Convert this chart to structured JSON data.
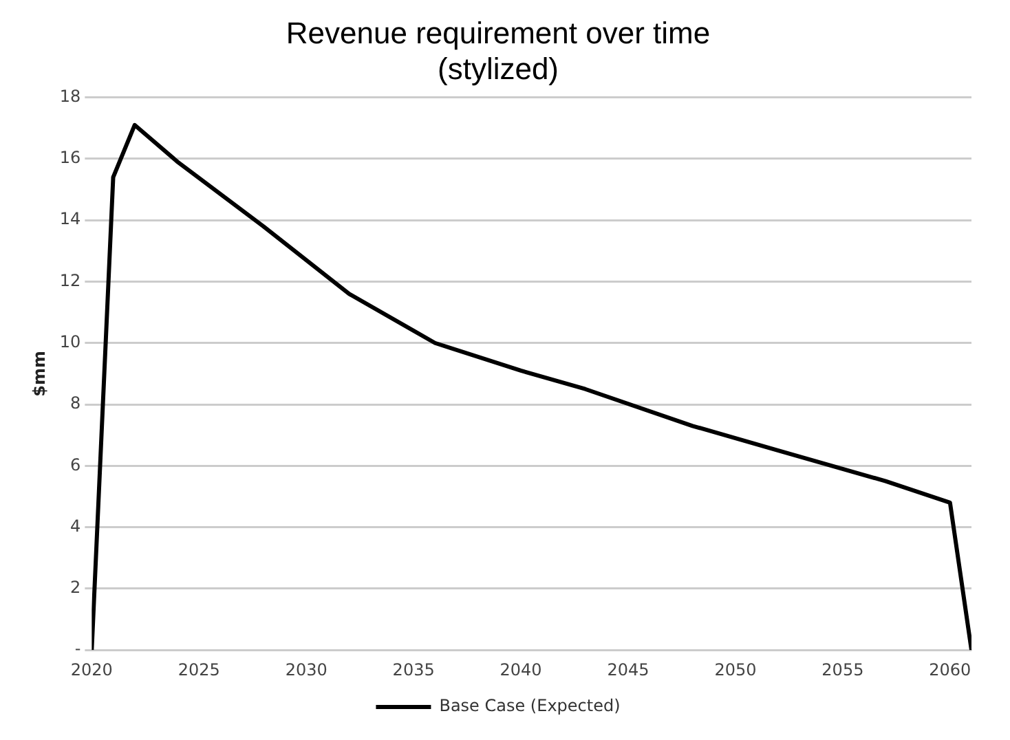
{
  "chart_data": {
    "type": "line",
    "title": [
      "Revenue requirement over time",
      "(stylized)"
    ],
    "ylabel": "$mm",
    "x": [
      2020,
      2021,
      2022,
      2024,
      2028,
      2032,
      2035,
      2036,
      2040,
      2043,
      2048,
      2052,
      2057,
      2060,
      2061
    ],
    "series": [
      {
        "name": "Base Case (Expected)",
        "color": "#000000",
        "values": [
          0,
          15.4,
          17.1,
          15.9,
          13.8,
          11.6,
          10.4,
          10.0,
          9.1,
          8.5,
          7.3,
          6.5,
          5.5,
          4.8,
          0
        ]
      }
    ],
    "xlim": [
      2020,
      2061
    ],
    "xticks": [
      2020,
      2025,
      2030,
      2035,
      2040,
      2045,
      2050,
      2055,
      2060
    ],
    "ylim": [
      0,
      18
    ],
    "yticks": [
      {
        "value": 0,
        "label": "-"
      },
      2,
      4,
      6,
      8,
      10,
      12,
      14,
      16,
      18
    ],
    "grid": "y",
    "legend": "bottom",
    "marker": "none",
    "line_style": "solid"
  }
}
